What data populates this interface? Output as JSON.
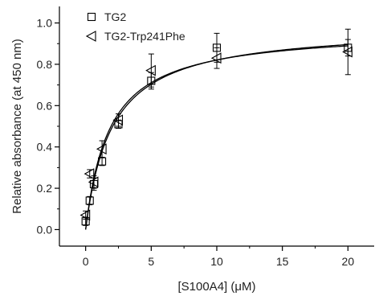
{
  "chart_data": {
    "type": "scatter",
    "title": "",
    "xlabel": "[S100A4] (μM)",
    "ylabel": "Relative absorbance (at 450 nm)",
    "xlim": [
      -2,
      22
    ],
    "ylim": [
      -0.08,
      1.08
    ],
    "x_ticks": [
      0,
      5,
      10,
      15,
      20
    ],
    "y_ticks": [
      0.0,
      0.2,
      0.4,
      0.6,
      0.8,
      1.0
    ],
    "x_tick_labels": [
      "0",
      "5",
      "10",
      "15",
      "20"
    ],
    "y_tick_labels": [
      "0.0",
      "0.2",
      "0.4",
      "0.6",
      "0.8",
      "1.0"
    ],
    "grid": false,
    "legend_position": "top-left",
    "series": [
      {
        "name": "TG2",
        "marker": "square",
        "points": [
          {
            "x": 0.0,
            "y": 0.04,
            "err": 0.02
          },
          {
            "x": 0.31,
            "y": 0.14,
            "err": 0.02
          },
          {
            "x": 0.63,
            "y": 0.22,
            "err": 0.03
          },
          {
            "x": 1.25,
            "y": 0.33,
            "err": 0.02
          },
          {
            "x": 2.5,
            "y": 0.51,
            "err": 0.02
          },
          {
            "x": 5.0,
            "y": 0.72,
            "err": 0.04
          },
          {
            "x": 10.0,
            "y": 0.88,
            "err": 0.07
          },
          {
            "x": 20.0,
            "y": 0.88,
            "err": 0.04
          }
        ],
        "fit": {
          "model": "hyperbolic",
          "bmax": 0.985,
          "kd": 2.0,
          "y0": 0.0
        }
      },
      {
        "name": "TG2-Trp241Phe",
        "marker": "triangle-left",
        "points": [
          {
            "x": 0.0,
            "y": 0.07,
            "err": 0.02
          },
          {
            "x": 0.31,
            "y": 0.27,
            "err": 0.02
          },
          {
            "x": 0.63,
            "y": 0.23,
            "err": 0.03
          },
          {
            "x": 1.25,
            "y": 0.39,
            "err": 0.04
          },
          {
            "x": 2.5,
            "y": 0.53,
            "err": 0.03
          },
          {
            "x": 5.0,
            "y": 0.77,
            "err": 0.08
          },
          {
            "x": 10.0,
            "y": 0.83,
            "err": 0.05
          },
          {
            "x": 20.0,
            "y": 0.86,
            "err": 0.11
          }
        ],
        "fit": {
          "model": "hyperbolic",
          "bmax": 0.97,
          "kd": 1.82,
          "y0": 0.0
        }
      }
    ]
  }
}
